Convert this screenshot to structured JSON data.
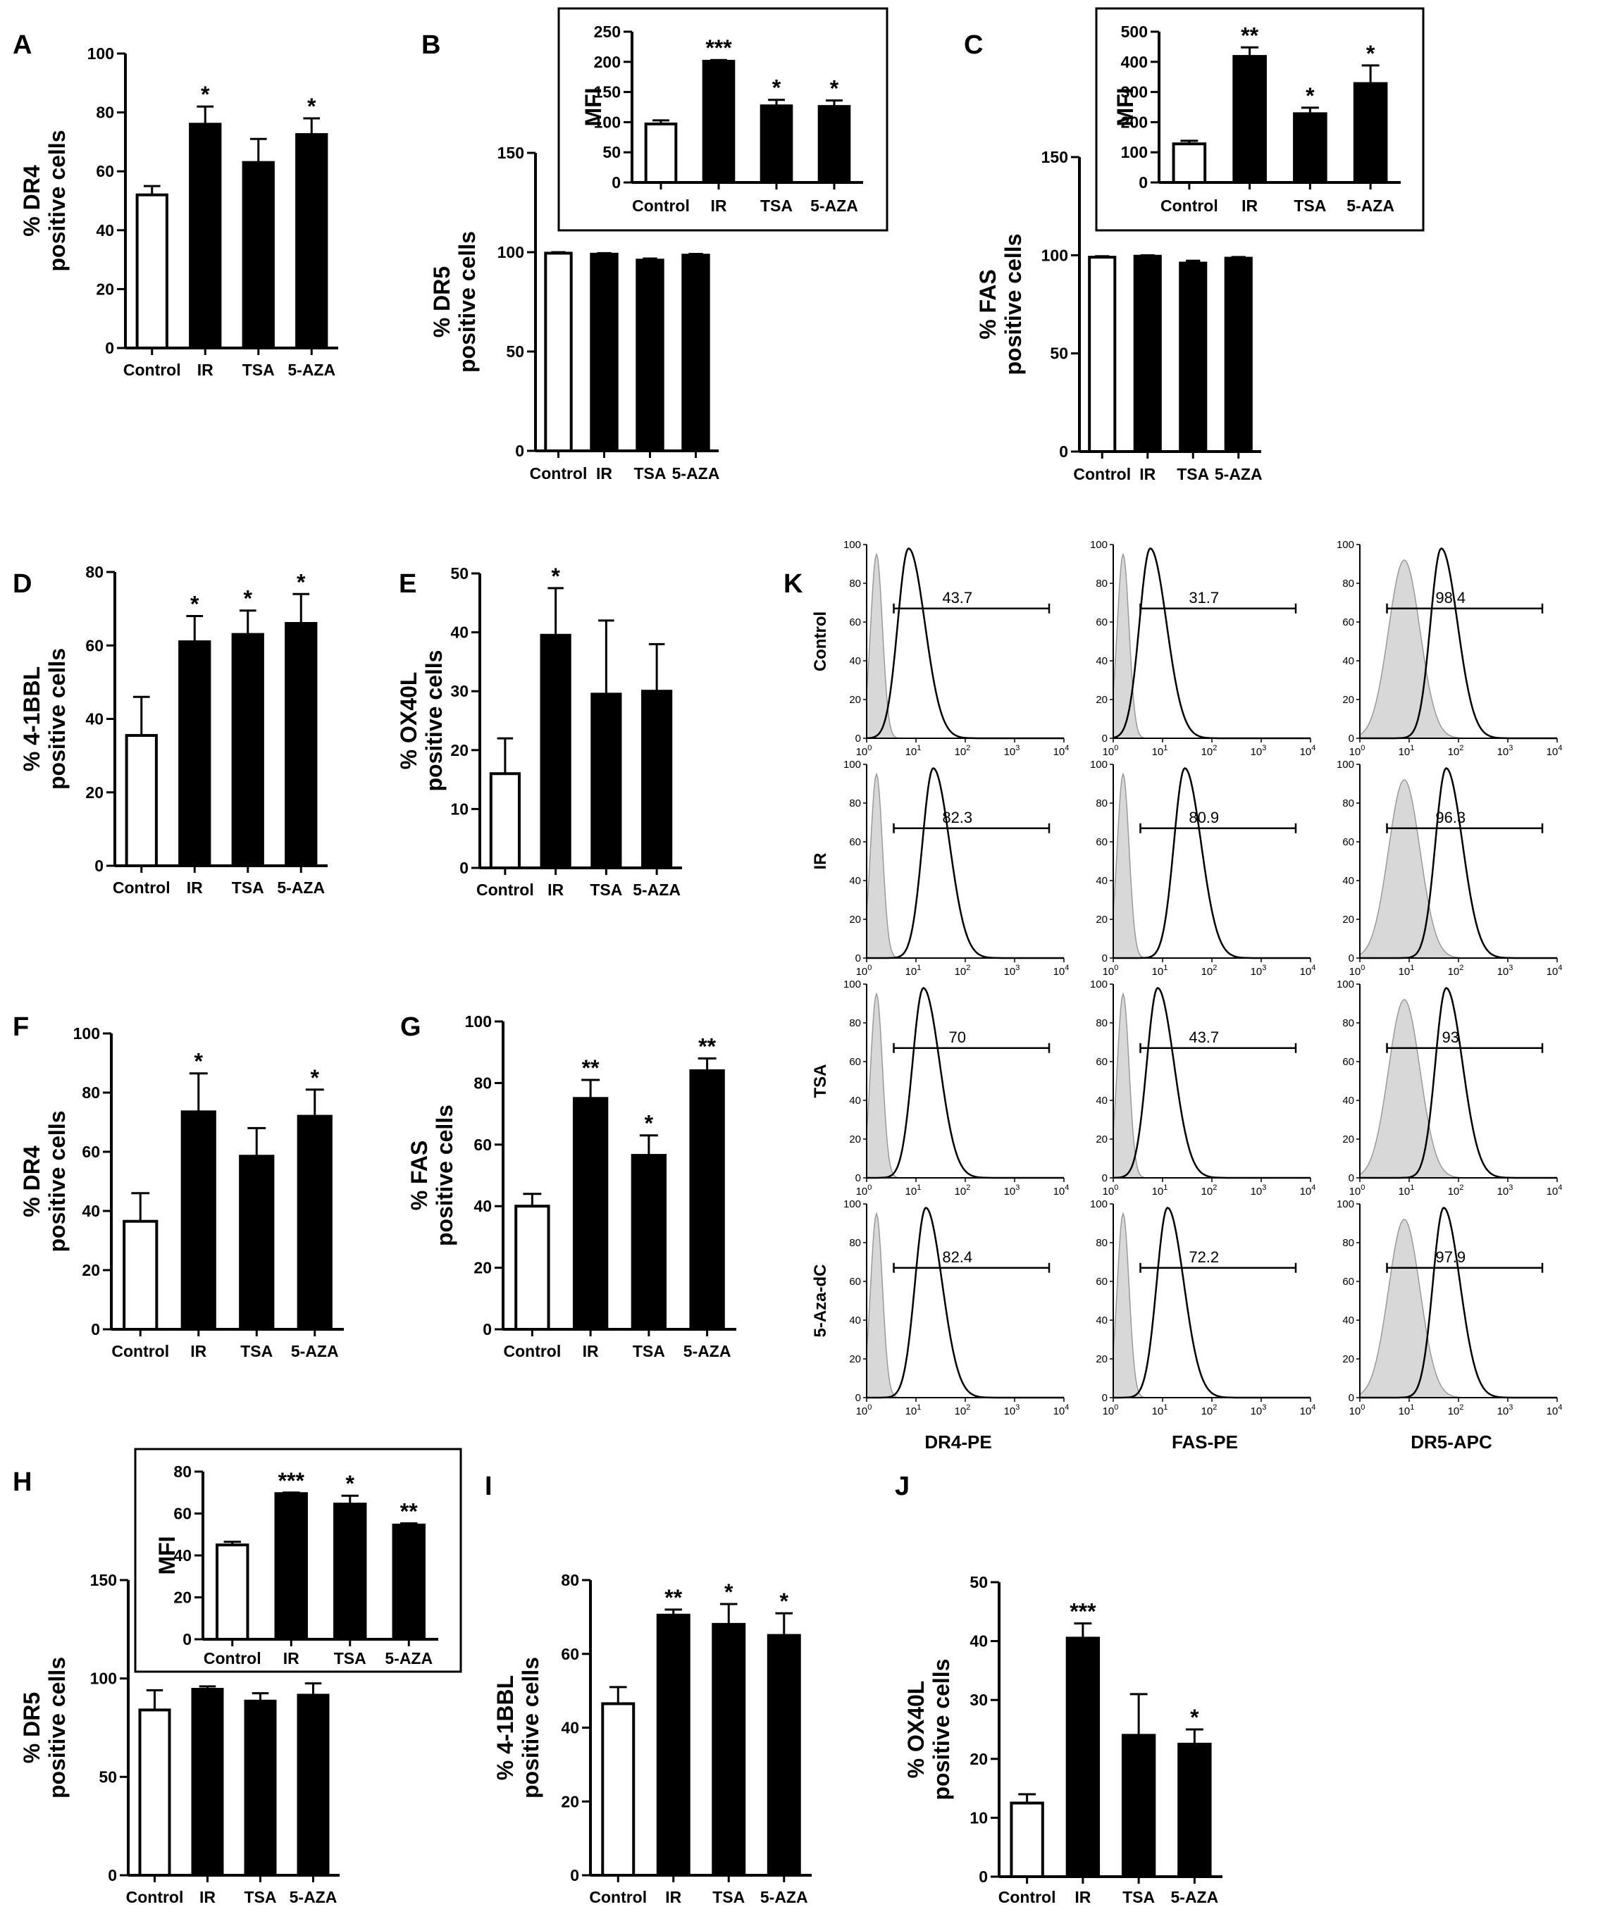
{
  "chart_data": [
    {
      "id": "A",
      "panel_label": "A",
      "type": "bar",
      "ylabel": [
        "% DR4",
        "positive cells"
      ],
      "categories": [
        "Control",
        "IR",
        "TSA",
        "5-AZA"
      ],
      "values": [
        52,
        76,
        63,
        72.5
      ],
      "errors": [
        3,
        6,
        8,
        5.5
      ],
      "significance": [
        "",
        "*",
        "",
        "*"
      ],
      "ylim": [
        0,
        100
      ],
      "yticks": [
        0,
        20,
        40,
        60,
        80,
        100
      ]
    },
    {
      "id": "B",
      "panel_label": "B",
      "type": "bar",
      "ylabel": [
        "% DR5",
        "positive cells"
      ],
      "categories": [
        "Control",
        "IR",
        "TSA",
        "5-AZA"
      ],
      "values": [
        99.5,
        99,
        96,
        98.5
      ],
      "errors": [
        0.5,
        0.5,
        0.8,
        0.6
      ],
      "significance": [
        "",
        "",
        "",
        ""
      ],
      "ylim": [
        0,
        150
      ],
      "yticks": [
        0,
        50,
        100,
        150
      ],
      "inset": {
        "ylabel": "MFI",
        "categories": [
          "Control",
          "IR",
          "TSA",
          "5-AZA"
        ],
        "values": [
          97,
          201,
          127,
          126
        ],
        "errors": [
          6,
          2,
          10,
          10
        ],
        "significance": [
          "",
          "***",
          "*",
          "*"
        ],
        "ylim": [
          0,
          250
        ],
        "yticks": [
          0,
          50,
          100,
          150,
          200,
          250
        ]
      }
    },
    {
      "id": "C",
      "panel_label": "C",
      "type": "bar",
      "ylabel": [
        "% FAS",
        "positive cells"
      ],
      "categories": [
        "Control",
        "IR",
        "TSA",
        "5-AZA"
      ],
      "values": [
        99,
        99.5,
        96,
        98.5
      ],
      "errors": [
        0.5,
        0.5,
        1.2,
        0.6
      ],
      "significance": [
        "",
        "",
        "",
        ""
      ],
      "ylim": [
        0,
        150
      ],
      "yticks": [
        0,
        50,
        100,
        150
      ],
      "inset": {
        "ylabel": "MFI",
        "categories": [
          "Control",
          "IR",
          "TSA",
          "5-AZA"
        ],
        "values": [
          128,
          418,
          228,
          328
        ],
        "errors": [
          10,
          30,
          20,
          60
        ],
        "significance": [
          "",
          "**",
          "*",
          "*"
        ],
        "ylim": [
          0,
          500
        ],
        "yticks": [
          0,
          100,
          200,
          300,
          400,
          500
        ]
      }
    },
    {
      "id": "D",
      "panel_label": "D",
      "type": "bar",
      "ylabel": [
        "% 4-1BBL",
        "positive cells"
      ],
      "categories": [
        "Control",
        "IR",
        "TSA",
        "5-AZA"
      ],
      "values": [
        35.5,
        61,
        63,
        66
      ],
      "errors": [
        10.5,
        7,
        6.5,
        8
      ],
      "significance": [
        "",
        "*",
        "*",
        "*"
      ],
      "ylim": [
        0,
        80
      ],
      "yticks": [
        0,
        20,
        40,
        60,
        80
      ]
    },
    {
      "id": "E",
      "panel_label": "E",
      "type": "bar",
      "ylabel": [
        "% OX40L",
        "positive cells"
      ],
      "categories": [
        "Control",
        "IR",
        "TSA",
        "5-AZA"
      ],
      "values": [
        16,
        39.5,
        29.5,
        30
      ],
      "errors": [
        6,
        8,
        12.5,
        8
      ],
      "significance": [
        "",
        "*",
        "",
        ""
      ],
      "ylim": [
        0,
        50
      ],
      "yticks": [
        0,
        10,
        20,
        30,
        40,
        50
      ]
    },
    {
      "id": "F",
      "panel_label": "F",
      "type": "bar",
      "ylabel": [
        "% DR4",
        "positive cells"
      ],
      "categories": [
        "Control",
        "IR",
        "TSA",
        "5-AZA"
      ],
      "values": [
        36.5,
        73.5,
        58.5,
        72
      ],
      "errors": [
        9.5,
        13,
        9.5,
        9
      ],
      "significance": [
        "",
        "*",
        "",
        "*"
      ],
      "ylim": [
        0,
        100
      ],
      "yticks": [
        0,
        20,
        40,
        60,
        80,
        100
      ]
    },
    {
      "id": "G",
      "panel_label": "G",
      "type": "bar",
      "ylabel": [
        "% FAS",
        "positive cells"
      ],
      "categories": [
        "Control",
        "IR",
        "TSA",
        "5-AZA"
      ],
      "values": [
        40,
        75,
        56.5,
        84
      ],
      "errors": [
        4,
        6,
        6.5,
        4
      ],
      "significance": [
        "",
        "**",
        "*",
        "**"
      ],
      "ylim": [
        0,
        100
      ],
      "yticks": [
        0,
        20,
        40,
        60,
        80,
        100
      ]
    },
    {
      "id": "H",
      "panel_label": "H",
      "type": "bar",
      "ylabel": [
        "% DR5",
        "positive cells"
      ],
      "categories": [
        "Control",
        "IR",
        "TSA",
        "5-AZA"
      ],
      "values": [
        84,
        94.5,
        88.5,
        91.5
      ],
      "errors": [
        10,
        1.5,
        4,
        6
      ],
      "significance": [
        "",
        "",
        "",
        ""
      ],
      "ylim": [
        0,
        150
      ],
      "yticks": [
        0,
        50,
        100,
        150
      ],
      "inset": {
        "ylabel": "MFI",
        "categories": [
          "Control",
          "IR",
          "TSA",
          "5-AZA"
        ],
        "values": [
          45,
          69.5,
          64.5,
          54.5
        ],
        "errors": [
          1.5,
          0.5,
          4,
          0.8
        ],
        "significance": [
          "",
          "***",
          "*",
          "**"
        ],
        "ylim": [
          0,
          80
        ],
        "yticks": [
          0,
          20,
          40,
          60,
          80
        ]
      }
    },
    {
      "id": "I",
      "panel_label": "I",
      "type": "bar",
      "ylabel": [
        "% 4-1BBL",
        "positive cells"
      ],
      "categories": [
        "Control",
        "IR",
        "TSA",
        "5-AZA"
      ],
      "values": [
        46.5,
        70.5,
        68,
        65
      ],
      "errors": [
        4.5,
        1.5,
        5.5,
        6
      ],
      "significance": [
        "",
        "**",
        "*",
        "*"
      ],
      "ylim": [
        0,
        80
      ],
      "yticks": [
        0,
        20,
        40,
        60,
        80
      ]
    },
    {
      "id": "J",
      "panel_label": "J",
      "type": "bar",
      "ylabel": [
        "% OX40L",
        "positive cells"
      ],
      "categories": [
        "Control",
        "IR",
        "TSA",
        "5-AZA"
      ],
      "values": [
        12.5,
        40.5,
        24,
        22.5
      ],
      "errors": [
        1.5,
        2.5,
        7,
        2.5
      ],
      "significance": [
        "",
        "***",
        "",
        "*"
      ],
      "ylim": [
        0,
        50
      ],
      "yticks": [
        0,
        10,
        20,
        30,
        40,
        50
      ]
    }
  ],
  "flow_panel": {
    "panel_label": "K",
    "type": "histogram-grid",
    "row_labels": [
      "Control",
      "IR",
      "TSA",
      "5-Aza-dC"
    ],
    "column_labels": [
      "DR4-PE",
      "FAS-PE",
      "DR5-APC"
    ],
    "yticks": [
      0,
      20,
      40,
      60,
      80,
      100
    ],
    "xticks": [
      "10",
      "1",
      "2",
      "3",
      "4"
    ],
    "gate_percentages": [
      [
        "43.7",
        "31.7",
        "98.4"
      ],
      [
        "82.3",
        "80.9",
        "96.3"
      ],
      [
        "70",
        "43.7",
        "93"
      ],
      [
        "82.4",
        "72.2",
        "97.9"
      ]
    ],
    "peak_log10": [
      [
        0.85,
        0.75,
        1.65
      ],
      [
        1.35,
        1.45,
        1.75
      ],
      [
        1.15,
        0.9,
        1.75
      ],
      [
        1.2,
        1.1,
        1.7
      ]
    ],
    "isotype_peak_log10": [
      0.2,
      0.2,
      0.9
    ],
    "colors": {
      "isotype_fill": "#d8d8d8",
      "isotype_stroke": "#9a9a9a",
      "stained_stroke": "#000000"
    }
  },
  "colors": {
    "control_bar": "#ffffff",
    "treated_bar": "#000000",
    "axis": "#000000"
  }
}
